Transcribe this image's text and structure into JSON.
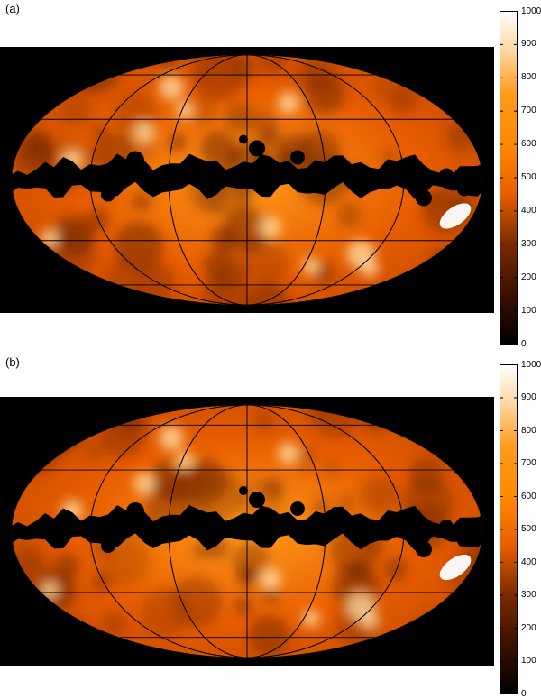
{
  "panels": [
    {
      "label": "(a)",
      "colorbar": {
        "min": 0,
        "max": 1000,
        "ticks": [
          0,
          100,
          200,
          300,
          400,
          500,
          600,
          700,
          800,
          900,
          1000
        ]
      }
    },
    {
      "label": "(b)",
      "colorbar": {
        "min": 0,
        "max": 1000,
        "ticks": [
          0,
          100,
          200,
          300,
          400,
          500,
          600,
          700,
          800,
          900,
          1000
        ]
      }
    }
  ],
  "colors": {
    "background": "#000000",
    "low": "#000000",
    "mid_dark": "#7a2a00",
    "mid": "#e85e00",
    "mid_high": "#ff9a1a",
    "high": "#ffffff",
    "graticule": "#000000"
  }
}
